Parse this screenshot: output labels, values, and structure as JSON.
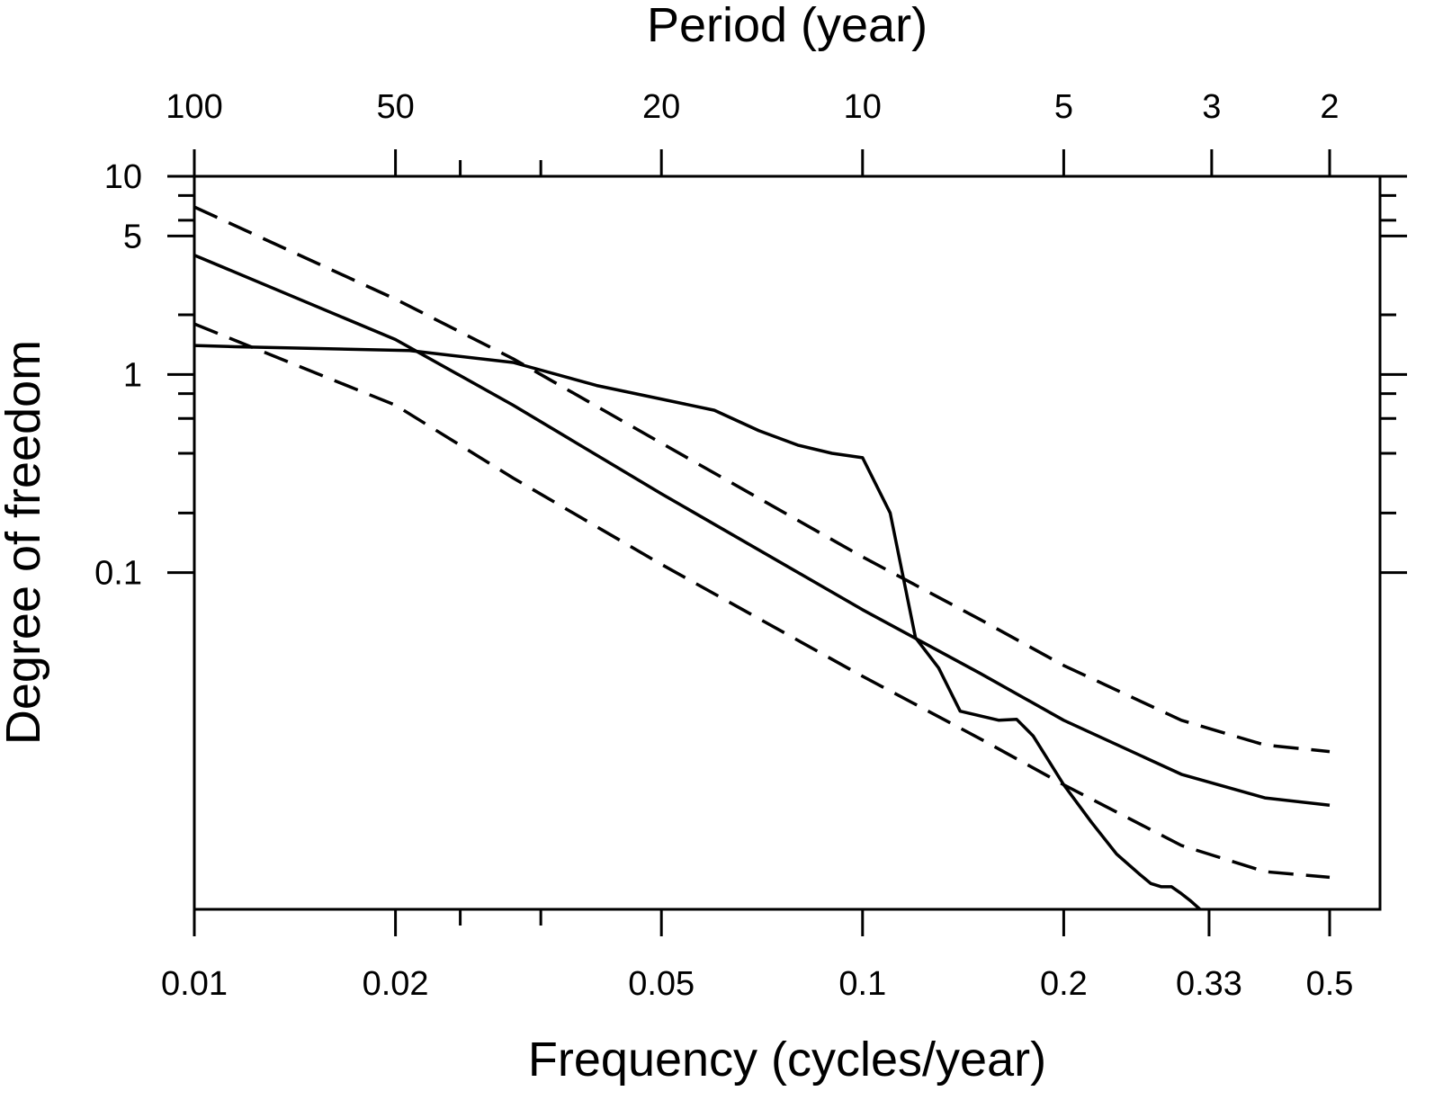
{
  "chart_data": {
    "type": "line",
    "title": "",
    "xlabel": "Frequency (cycles/year)",
    "ylabel": "Degree of freedom",
    "top_xlabel": "Period (year)",
    "x_scale": "log",
    "y_scale": "log",
    "xlim": [
      0.01,
      0.5
    ],
    "ylim": [
      0.002,
      10
    ],
    "x_ticks": [
      {
        "value": 0.01,
        "label": "0.01"
      },
      {
        "value": 0.02,
        "label": "0.02"
      },
      {
        "value": 0.05,
        "label": "0.05"
      },
      {
        "value": 0.1,
        "label": "0.1"
      },
      {
        "value": 0.2,
        "label": "0.2"
      },
      {
        "value": 0.33,
        "label": "0.33"
      },
      {
        "value": 0.5,
        "label": "0.5"
      }
    ],
    "x_minor_ticks": [
      0.025,
      0.033
    ],
    "top_ticks": [
      {
        "value": 0.01,
        "label": "100"
      },
      {
        "value": 0.02,
        "label": "50"
      },
      {
        "value": 0.05,
        "label": "20"
      },
      {
        "value": 0.1,
        "label": "10"
      },
      {
        "value": 0.2,
        "label": "5"
      },
      {
        "value": 0.333,
        "label": "3"
      },
      {
        "value": 0.5,
        "label": "2"
      }
    ],
    "y_ticks": [
      {
        "value": 10,
        "label": "10"
      },
      {
        "value": 5,
        "label": "5"
      },
      {
        "value": 1,
        "label": "1"
      },
      {
        "value": 0.1,
        "label": "0.1"
      }
    ],
    "y_minor_ticks": [
      8,
      6,
      2,
      0.8,
      0.6,
      0.4,
      0.2
    ],
    "grid": false,
    "legend": "none",
    "line_color": "#000000",
    "series": [
      {
        "style": "solid",
        "x": [
          0.01,
          0.02,
          0.03,
          0.05,
          0.1,
          0.15,
          0.2,
          0.3,
          0.4,
          0.5
        ],
        "y": [
          4.0,
          1.5,
          0.7,
          0.25,
          0.065,
          0.031,
          0.018,
          0.0096,
          0.0073,
          0.0067
        ]
      },
      {
        "style": "dashed",
        "x": [
          0.01,
          0.02,
          0.03,
          0.05,
          0.1,
          0.15,
          0.2,
          0.3,
          0.4,
          0.5
        ],
        "y": [
          7.0,
          2.4,
          1.2,
          0.45,
          0.12,
          0.058,
          0.034,
          0.018,
          0.0135,
          0.0125
        ]
      },
      {
        "style": "dashed",
        "x": [
          0.01,
          0.02,
          0.03,
          0.05,
          0.1,
          0.15,
          0.2,
          0.3,
          0.4,
          0.5
        ],
        "y": [
          1.8,
          0.7,
          0.3,
          0.11,
          0.03,
          0.0145,
          0.0085,
          0.0042,
          0.0031,
          0.0029
        ]
      },
      {
        "style": "solid",
        "x": [
          0.01,
          0.0115,
          0.021,
          0.03,
          0.04,
          0.06,
          0.07,
          0.08,
          0.09,
          0.1,
          0.11,
          0.12,
          0.13,
          0.14,
          0.16,
          0.17,
          0.18,
          0.2,
          0.22,
          0.24,
          0.26,
          0.27,
          0.28,
          0.29,
          0.3,
          0.31,
          0.32
        ],
        "y": [
          1.4,
          1.38,
          1.32,
          1.15,
          0.88,
          0.66,
          0.52,
          0.44,
          0.4,
          0.38,
          0.2,
          0.047,
          0.033,
          0.02,
          0.018,
          0.0182,
          0.015,
          0.0085,
          0.0055,
          0.0038,
          0.003,
          0.0027,
          0.0026,
          0.0026,
          0.0024,
          0.0022,
          0.002
        ]
      }
    ]
  }
}
